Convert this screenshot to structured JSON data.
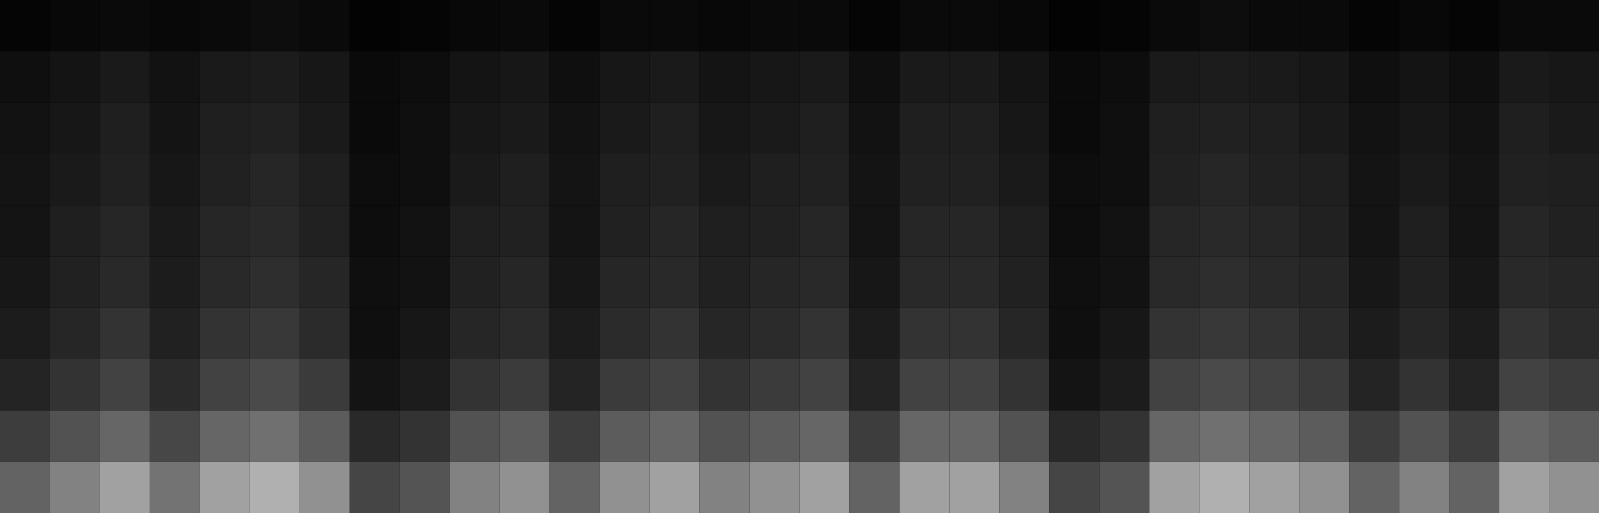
{
  "chart_data": {
    "type": "heatmap",
    "tick_labels": false,
    "color_range": [
      0,
      1
    ],
    "cells": [
      [
        0.02,
        0.03,
        0.04,
        0.03,
        0.04,
        0.05,
        0.04,
        0.01,
        0.02,
        0.03,
        0.04,
        0.02,
        0.04,
        0.04,
        0.03,
        0.04,
        0.04,
        0.02,
        0.04,
        0.04,
        0.03,
        0.01,
        0.02,
        0.04,
        0.05,
        0.04,
        0.04,
        0.02,
        0.03,
        0.02,
        0.04,
        0.04
      ],
      [
        0.06,
        0.08,
        0.1,
        0.07,
        0.1,
        0.11,
        0.09,
        0.04,
        0.05,
        0.08,
        0.09,
        0.06,
        0.09,
        0.1,
        0.08,
        0.09,
        0.1,
        0.06,
        0.1,
        0.1,
        0.08,
        0.04,
        0.05,
        0.1,
        0.11,
        0.1,
        0.09,
        0.06,
        0.08,
        0.06,
        0.1,
        0.09
      ],
      [
        0.07,
        0.09,
        0.12,
        0.08,
        0.12,
        0.13,
        0.1,
        0.04,
        0.06,
        0.09,
        0.1,
        0.07,
        0.1,
        0.12,
        0.09,
        0.1,
        0.12,
        0.07,
        0.12,
        0.12,
        0.09,
        0.04,
        0.06,
        0.12,
        0.13,
        0.12,
        0.1,
        0.07,
        0.09,
        0.07,
        0.12,
        0.1
      ],
      [
        0.08,
        0.1,
        0.13,
        0.09,
        0.13,
        0.15,
        0.12,
        0.05,
        0.06,
        0.1,
        0.12,
        0.08,
        0.12,
        0.13,
        0.1,
        0.12,
        0.13,
        0.08,
        0.13,
        0.13,
        0.1,
        0.05,
        0.06,
        0.13,
        0.15,
        0.13,
        0.12,
        0.08,
        0.1,
        0.08,
        0.13,
        0.12
      ],
      [
        0.08,
        0.12,
        0.15,
        0.1,
        0.15,
        0.16,
        0.13,
        0.05,
        0.07,
        0.12,
        0.13,
        0.08,
        0.13,
        0.15,
        0.12,
        0.13,
        0.15,
        0.08,
        0.15,
        0.15,
        0.12,
        0.05,
        0.07,
        0.15,
        0.16,
        0.15,
        0.13,
        0.08,
        0.12,
        0.08,
        0.15,
        0.13
      ],
      [
        0.09,
        0.13,
        0.16,
        0.11,
        0.16,
        0.18,
        0.15,
        0.06,
        0.07,
        0.13,
        0.15,
        0.09,
        0.15,
        0.16,
        0.13,
        0.15,
        0.16,
        0.09,
        0.16,
        0.16,
        0.13,
        0.06,
        0.07,
        0.16,
        0.18,
        0.16,
        0.15,
        0.09,
        0.13,
        0.09,
        0.16,
        0.15
      ],
      [
        0.11,
        0.15,
        0.2,
        0.13,
        0.2,
        0.22,
        0.17,
        0.06,
        0.09,
        0.15,
        0.17,
        0.11,
        0.17,
        0.2,
        0.15,
        0.17,
        0.2,
        0.11,
        0.2,
        0.2,
        0.15,
        0.06,
        0.09,
        0.2,
        0.22,
        0.2,
        0.17,
        0.11,
        0.15,
        0.11,
        0.2,
        0.17
      ],
      [
        0.14,
        0.2,
        0.26,
        0.17,
        0.26,
        0.29,
        0.23,
        0.08,
        0.11,
        0.2,
        0.23,
        0.14,
        0.23,
        0.26,
        0.2,
        0.23,
        0.26,
        0.14,
        0.26,
        0.26,
        0.2,
        0.08,
        0.11,
        0.26,
        0.29,
        0.26,
        0.23,
        0.14,
        0.2,
        0.14,
        0.26,
        0.23
      ],
      [
        0.24,
        0.32,
        0.4,
        0.28,
        0.4,
        0.44,
        0.36,
        0.16,
        0.2,
        0.32,
        0.36,
        0.24,
        0.36,
        0.4,
        0.32,
        0.36,
        0.4,
        0.24,
        0.4,
        0.4,
        0.32,
        0.16,
        0.2,
        0.4,
        0.44,
        0.4,
        0.36,
        0.24,
        0.32,
        0.24,
        0.4,
        0.36
      ],
      [
        0.39,
        0.51,
        0.63,
        0.45,
        0.63,
        0.69,
        0.57,
        0.27,
        0.33,
        0.51,
        0.57,
        0.39,
        0.57,
        0.63,
        0.51,
        0.57,
        0.63,
        0.39,
        0.63,
        0.63,
        0.51,
        0.27,
        0.33,
        0.63,
        0.69,
        0.63,
        0.57,
        0.39,
        0.51,
        0.39,
        0.63,
        0.57
      ]
    ]
  }
}
